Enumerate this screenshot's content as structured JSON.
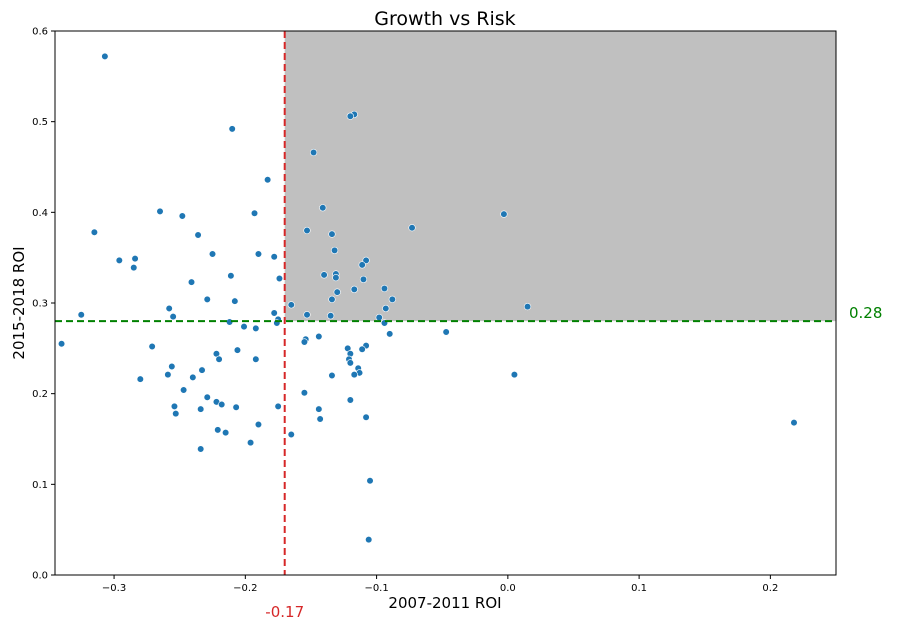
{
  "chart_data": {
    "type": "scatter",
    "title": "Growth vs Risk",
    "xlabel": "2007-2011 ROI",
    "ylabel": "2015-2018 ROI",
    "xlim": [
      -0.345,
      0.25
    ],
    "ylim": [
      0.0,
      0.6
    ],
    "x_ticks": [
      -0.3,
      -0.2,
      -0.1,
      0.0,
      0.1,
      0.2
    ],
    "x_tick_labels": [
      "−0.3",
      "−0.2",
      "−0.1",
      "0.0",
      "0.1",
      "0.2"
    ],
    "y_ticks": [
      0.0,
      0.1,
      0.2,
      0.3,
      0.4,
      0.5,
      0.6
    ],
    "y_tick_labels": [
      "0.0",
      "0.1",
      "0.2",
      "0.3",
      "0.4",
      "0.5",
      "0.6"
    ],
    "grid": false,
    "point_color": "#1f77b4",
    "shaded_region": {
      "x_from": -0.17,
      "y_from": 0.28,
      "color": "#c0c0c0"
    },
    "reference_lines": {
      "vertical": {
        "x": -0.17,
        "label": "-0.17",
        "color": "#d62728"
      },
      "horizontal": {
        "y": 0.28,
        "label": "0.28",
        "color": "#008000"
      }
    },
    "points": [
      [
        -0.307,
        0.572
      ],
      [
        -0.21,
        0.492
      ],
      [
        -0.183,
        0.436
      ],
      [
        -0.265,
        0.401
      ],
      [
        -0.248,
        0.396
      ],
      [
        -0.193,
        0.399
      ],
      [
        -0.315,
        0.378
      ],
      [
        -0.236,
        0.375
      ],
      [
        -0.225,
        0.354
      ],
      [
        -0.19,
        0.354
      ],
      [
        -0.178,
        0.351
      ],
      [
        -0.296,
        0.347
      ],
      [
        -0.284,
        0.349
      ],
      [
        -0.285,
        0.339
      ],
      [
        -0.211,
        0.33
      ],
      [
        -0.174,
        0.327
      ],
      [
        -0.241,
        0.323
      ],
      [
        -0.229,
        0.304
      ],
      [
        -0.208,
        0.302
      ],
      [
        -0.258,
        0.294
      ],
      [
        -0.178,
        0.289
      ],
      [
        -0.325,
        0.287
      ],
      [
        -0.255,
        0.285
      ],
      [
        -0.175,
        0.282
      ],
      [
        -0.176,
        0.278
      ],
      [
        -0.212,
        0.279
      ],
      [
        -0.201,
        0.274
      ],
      [
        -0.192,
        0.272
      ],
      [
        -0.34,
        0.255
      ],
      [
        -0.271,
        0.252
      ],
      [
        -0.206,
        0.248
      ],
      [
        -0.222,
        0.244
      ],
      [
        -0.22,
        0.238
      ],
      [
        -0.192,
        0.238
      ],
      [
        -0.256,
        0.23
      ],
      [
        -0.233,
        0.226
      ],
      [
        -0.259,
        0.221
      ],
      [
        -0.24,
        0.218
      ],
      [
        -0.28,
        0.216
      ],
      [
        -0.247,
        0.204
      ],
      [
        -0.229,
        0.196
      ],
      [
        -0.222,
        0.191
      ],
      [
        -0.218,
        0.188
      ],
      [
        -0.254,
        0.186
      ],
      [
        -0.207,
        0.185
      ],
      [
        -0.175,
        0.186
      ],
      [
        -0.234,
        0.183
      ],
      [
        -0.253,
        0.178
      ],
      [
        -0.19,
        0.166
      ],
      [
        -0.221,
        0.16
      ],
      [
        -0.215,
        0.157
      ],
      [
        -0.196,
        0.146
      ],
      [
        -0.234,
        0.139
      ],
      [
        -0.165,
        0.155
      ],
      [
        -0.117,
        0.508
      ],
      [
        -0.12,
        0.506
      ],
      [
        -0.148,
        0.466
      ],
      [
        -0.141,
        0.405
      ],
      [
        -0.003,
        0.398
      ],
      [
        -0.073,
        0.383
      ],
      [
        -0.153,
        0.38
      ],
      [
        -0.134,
        0.376
      ],
      [
        -0.132,
        0.358
      ],
      [
        -0.108,
        0.347
      ],
      [
        -0.111,
        0.342
      ],
      [
        -0.14,
        0.331
      ],
      [
        -0.131,
        0.332
      ],
      [
        -0.131,
        0.328
      ],
      [
        -0.11,
        0.326
      ],
      [
        -0.094,
        0.316
      ],
      [
        -0.117,
        0.315
      ],
      [
        -0.13,
        0.312
      ],
      [
        -0.134,
        0.304
      ],
      [
        -0.088,
        0.304
      ],
      [
        -0.165,
        0.298
      ],
      [
        0.015,
        0.296
      ],
      [
        -0.093,
        0.294
      ],
      [
        -0.153,
        0.287
      ],
      [
        -0.135,
        0.286
      ],
      [
        -0.098,
        0.284
      ],
      [
        -0.094,
        0.278
      ],
      [
        -0.09,
        0.266
      ],
      [
        -0.047,
        0.268
      ],
      [
        -0.144,
        0.263
      ],
      [
        -0.154,
        0.26
      ],
      [
        -0.155,
        0.257
      ],
      [
        -0.108,
        0.253
      ],
      [
        -0.111,
        0.249
      ],
      [
        -0.122,
        0.25
      ],
      [
        -0.12,
        0.244
      ],
      [
        -0.121,
        0.238
      ],
      [
        -0.12,
        0.234
      ],
      [
        -0.114,
        0.228
      ],
      [
        -0.113,
        0.223
      ],
      [
        -0.117,
        0.221
      ],
      [
        0.005,
        0.221
      ],
      [
        -0.134,
        0.22
      ],
      [
        -0.155,
        0.201
      ],
      [
        -0.12,
        0.193
      ],
      [
        -0.144,
        0.183
      ],
      [
        -0.108,
        0.174
      ],
      [
        -0.143,
        0.172
      ],
      [
        -0.105,
        0.104
      ],
      [
        -0.106,
        0.039
      ],
      [
        0.218,
        0.168
      ]
    ]
  }
}
